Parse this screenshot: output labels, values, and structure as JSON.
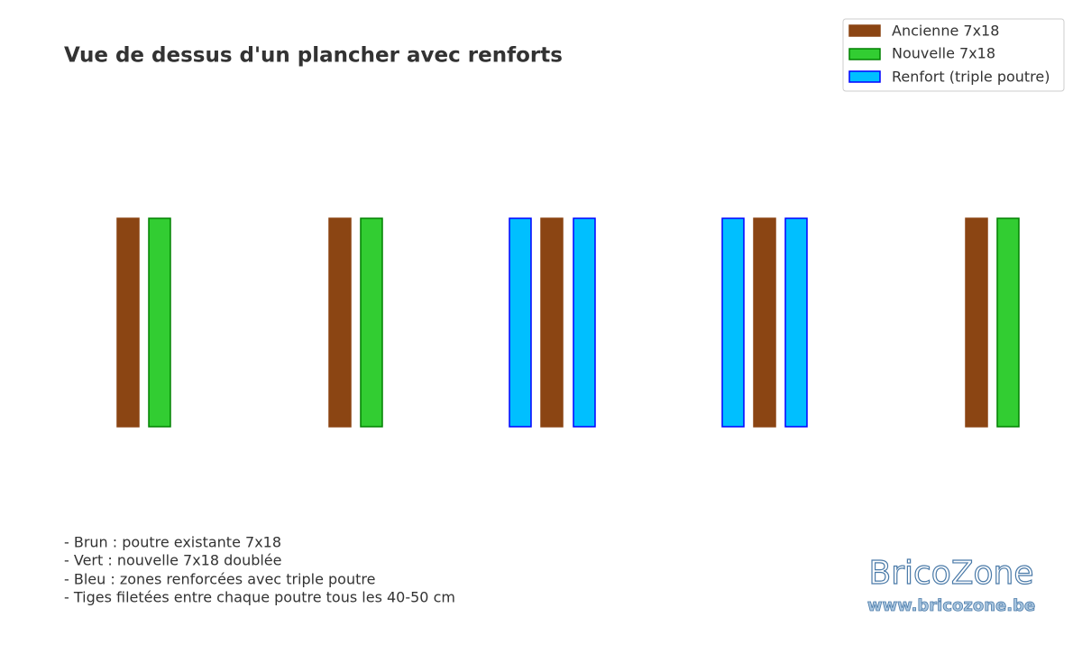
{
  "title": "Vue de dessus d'un plancher avec renforts",
  "legend": {
    "items": [
      "Ancienne 7x18",
      "Nouvelle 7x18",
      "Renfort (triple poutre)"
    ]
  },
  "notes": [
    "- Brun : poutre existante 7x18",
    "- Vert : nouvelle 7x18 doublée",
    "- Bleu : zones renforcées avec triple poutre",
    "- Tiges filetées entre chaque poutre tous les 40-50 cm"
  ],
  "watermark": {
    "name": "BricoZone",
    "url": "www.bricozone.be"
  }
}
